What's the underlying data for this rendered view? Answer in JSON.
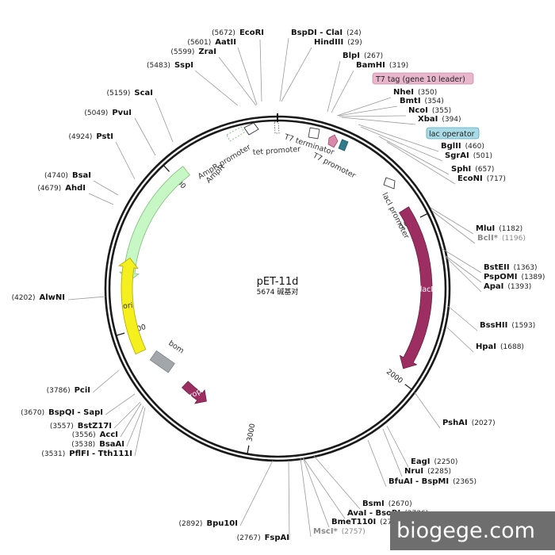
{
  "plasmid": {
    "name": "pET-11d",
    "length_label": "5674 碱基对",
    "length": 5674
  },
  "scale_ticks": [
    {
      "label": "1000",
      "position": 1000
    },
    {
      "label": "2000",
      "position": 2000
    },
    {
      "label": "3000",
      "position": 3000
    },
    {
      "label": "4000",
      "position": 4000
    },
    {
      "label": "5000",
      "position": 5000
    }
  ],
  "features": [
    {
      "name": "AmpR",
      "label": "AmpR",
      "start": 4300,
      "end": 5080,
      "direction": "ccw",
      "color": "#c6f7c4",
      "stroke": "#7fbf7b",
      "kind": "arrow"
    },
    {
      "name": "lacI",
      "label": "lacI",
      "start": 915,
      "end": 1930,
      "direction": "cw",
      "color": "#9c2e62",
      "stroke": "#6e1f45",
      "kind": "arrow"
    },
    {
      "name": "ori",
      "label": "ori",
      "start": 3865,
      "end": 4440,
      "direction": "cw",
      "color": "#f5ef1d",
      "stroke": "#b0a800",
      "kind": "arrow"
    },
    {
      "name": "rop",
      "label": "rop",
      "start": 3345,
      "end": 3530,
      "direction": "ccw",
      "color": "#9c2e62",
      "stroke": "#6e1f45",
      "kind": "arrow-small"
    },
    {
      "name": "bom",
      "label": "bom",
      "start": 3700,
      "end": 3790,
      "direction": "none",
      "color": "#a3a7ab",
      "stroke": "#7b7f83",
      "kind": "box"
    }
  ],
  "small_features": [
    {
      "name": "AmpR promoter",
      "label": "AmpR promoter"
    },
    {
      "name": "tet promoter",
      "label": "tet promoter"
    },
    {
      "name": "T7 terminator",
      "label": "T7 terminator"
    },
    {
      "name": "T7 promoter",
      "label": "T7 promoter"
    },
    {
      "name": "lacI promoter",
      "label": "lacI promoter"
    }
  ],
  "tag_labels": [
    {
      "name": "t7-tag",
      "label": "T7 tag (gene 10 leader)",
      "color": "#e9b7cb",
      "border": "#c98aa5"
    },
    {
      "name": "lac-operator",
      "label": "lac operator",
      "color": "#a9dbe6",
      "border": "#5aa9bb"
    }
  ],
  "sites": [
    {
      "name": "EcoRI",
      "pos": "(5672)",
      "gray": false
    },
    {
      "name": "AatII",
      "pos": "(5601)",
      "gray": false
    },
    {
      "name": "ZraI",
      "pos": "(5599)",
      "gray": false
    },
    {
      "name": "SspI",
      "pos": "(5483)",
      "gray": false
    },
    {
      "name": "ScaI",
      "pos": "(5159)",
      "gray": false
    },
    {
      "name": "PvuI",
      "pos": "(5049)",
      "gray": false
    },
    {
      "name": "PstI",
      "pos": "(4924)",
      "gray": false
    },
    {
      "name": "BsaI",
      "pos": "(4740)",
      "gray": false
    },
    {
      "name": "AhdI",
      "pos": "(4679)",
      "gray": false
    },
    {
      "name": "AlwNI",
      "pos": "(4202)",
      "gray": false
    },
    {
      "name": "PciI",
      "pos": "(3786)",
      "gray": false
    },
    {
      "name": "BspQI - SapI",
      "pos": "(3670)",
      "gray": false
    },
    {
      "name": "BstZ17I",
      "pos": "(3557)",
      "gray": false
    },
    {
      "name": "AccI",
      "pos": "(3556)",
      "gray": false
    },
    {
      "name": "BsaAI",
      "pos": "(3538)",
      "gray": false
    },
    {
      "name": "PflFI - Tth111I",
      "pos": "(3531)",
      "gray": false
    },
    {
      "name": "Bpu10I",
      "pos": "(2892)",
      "gray": false
    },
    {
      "name": "FspAI",
      "pos": "(2767)",
      "gray": false
    },
    {
      "name": "BspDI - ClaI",
      "pos": "(24)",
      "gray": false
    },
    {
      "name": "HindIII",
      "pos": "(29)",
      "gray": false
    },
    {
      "name": "BlpI",
      "pos": "(267)",
      "gray": false
    },
    {
      "name": "BamHI",
      "pos": "(319)",
      "gray": false
    },
    {
      "name": "NheI",
      "pos": "(350)",
      "gray": false
    },
    {
      "name": "BmtI",
      "pos": "(354)",
      "gray": false
    },
    {
      "name": "NcoI",
      "pos": "(355)",
      "gray": false
    },
    {
      "name": "XbaI",
      "pos": "(394)",
      "gray": false
    },
    {
      "name": "BglII",
      "pos": "(460)",
      "gray": false
    },
    {
      "name": "SgrAI",
      "pos": "(501)",
      "gray": false
    },
    {
      "name": "SphI",
      "pos": "(657)",
      "gray": false
    },
    {
      "name": "EcoNI",
      "pos": "(717)",
      "gray": false
    },
    {
      "name": "MluI",
      "pos": "(1182)",
      "gray": false
    },
    {
      "name": "BclI*",
      "pos": "(1196)",
      "gray": true
    },
    {
      "name": "BstEII",
      "pos": "(1363)",
      "gray": false
    },
    {
      "name": "PspOMI",
      "pos": "(1389)",
      "gray": false
    },
    {
      "name": "ApaI",
      "pos": "(1393)",
      "gray": false
    },
    {
      "name": "BssHII",
      "pos": "(1593)",
      "gray": false
    },
    {
      "name": "HpaI",
      "pos": "(1688)",
      "gray": false
    },
    {
      "name": "PshAI",
      "pos": "(2027)",
      "gray": false
    },
    {
      "name": "EagI",
      "pos": "(2250)",
      "gray": false
    },
    {
      "name": "NruI",
      "pos": "(2285)",
      "gray": false
    },
    {
      "name": "BfuAI - BspMI",
      "pos": "(2365)",
      "gray": false
    },
    {
      "name": "BsmI",
      "pos": "(2670)",
      "gray": false
    },
    {
      "name": "AvaI - BsoBI",
      "pos": "(2736)",
      "gray": false
    },
    {
      "name": "BmeT110I",
      "pos": "(2736)",
      "gray": false
    },
    {
      "name": "MscI*",
      "pos": "(2757)",
      "gray": true
    }
  ],
  "watermark": {
    "text": "biogege.com",
    "color": "#6e6e6e"
  }
}
